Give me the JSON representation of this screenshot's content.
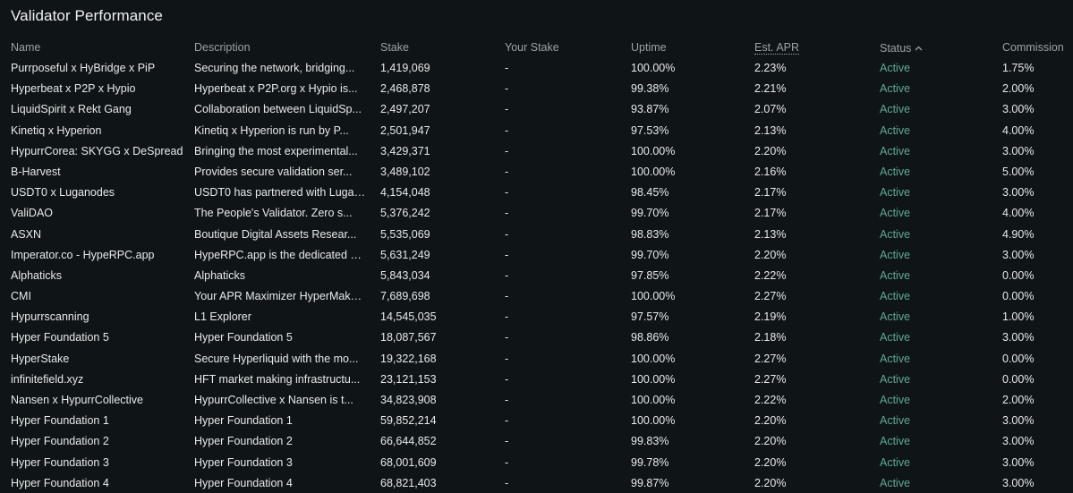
{
  "title": "Validator Performance",
  "headers": {
    "name": "Name",
    "description": "Description",
    "stake": "Stake",
    "your_stake": "Your Stake",
    "uptime": "Uptime",
    "apr": "Est. APR",
    "status": "Status",
    "commission": "Commission"
  },
  "icons": {
    "status_sort": "chevron-up-icon"
  },
  "colors": {
    "active": "#5fa893"
  },
  "rows": [
    {
      "name": "Purrposeful x HyBridge x PiP",
      "description": "Securing the network, bridging...",
      "stake": "1,419,069",
      "your_stake": "-",
      "uptime": "100.00%",
      "apr": "2.23%",
      "status": "Active",
      "commission": "1.75%"
    },
    {
      "name": "Hyperbeat x P2P x Hypio",
      "description": "Hyperbeat x P2P.org x Hypio is...",
      "stake": "2,468,878",
      "your_stake": "-",
      "uptime": "99.38%",
      "apr": "2.21%",
      "status": "Active",
      "commission": "2.00%"
    },
    {
      "name": "LiquidSpirit x Rekt Gang",
      "description": "Collaboration between LiquidSp...",
      "stake": "2,497,207",
      "your_stake": "-",
      "uptime": "93.87%",
      "apr": "2.07%",
      "status": "Active",
      "commission": "3.00%"
    },
    {
      "name": "Kinetiq x Hyperion",
      "description": "Kinetiq x Hyperion is run by P...",
      "stake": "2,501,947",
      "your_stake": "-",
      "uptime": "97.53%",
      "apr": "2.13%",
      "status": "Active",
      "commission": "4.00%"
    },
    {
      "name": "HypurrCorea: SKYGG x DeSpread",
      "description": "Bringing the most experimental...",
      "stake": "3,429,371",
      "your_stake": "-",
      "uptime": "100.00%",
      "apr": "2.20%",
      "status": "Active",
      "commission": "3.00%"
    },
    {
      "name": "B-Harvest",
      "description": "Provides secure validation ser...",
      "stake": "3,489,102",
      "your_stake": "-",
      "uptime": "100.00%",
      "apr": "2.16%",
      "status": "Active",
      "commission": "5.00%"
    },
    {
      "name": "USDT0 x Luganodes",
      "description": "USDT0 has partnered with Lugan...",
      "stake": "4,154,048",
      "your_stake": "-",
      "uptime": "98.45%",
      "apr": "2.17%",
      "status": "Active",
      "commission": "3.00%"
    },
    {
      "name": "ValiDAO",
      "description": "The People's Validator. Zero s...",
      "stake": "5,376,242",
      "your_stake": "-",
      "uptime": "99.70%",
      "apr": "2.17%",
      "status": "Active",
      "commission": "4.00%"
    },
    {
      "name": "ASXN",
      "description": "Boutique Digital Assets Resear...",
      "stake": "5,535,069",
      "your_stake": "-",
      "uptime": "98.83%",
      "apr": "2.13%",
      "status": "Active",
      "commission": "4.90%"
    },
    {
      "name": "Imperator.co - HypeRPC.app",
      "description": "HypeRPC.app is the dedicated R...",
      "stake": "5,631,249",
      "your_stake": "-",
      "uptime": "99.70%",
      "apr": "2.20%",
      "status": "Active",
      "commission": "3.00%"
    },
    {
      "name": "Alphaticks",
      "description": "Alphaticks",
      "stake": "5,843,034",
      "your_stake": "-",
      "uptime": "97.85%",
      "apr": "2.22%",
      "status": "Active",
      "commission": "0.00%"
    },
    {
      "name": "CMI",
      "description": "Your APR Maximizer HyperMaker....",
      "stake": "7,689,698",
      "your_stake": "-",
      "uptime": "100.00%",
      "apr": "2.27%",
      "status": "Active",
      "commission": "0.00%"
    },
    {
      "name": "Hypurrscanning",
      "description": "L1 Explorer",
      "stake": "14,545,035",
      "your_stake": "-",
      "uptime": "97.57%",
      "apr": "2.19%",
      "status": "Active",
      "commission": "1.00%"
    },
    {
      "name": "Hyper Foundation 5",
      "description": "Hyper Foundation 5",
      "stake": "18,087,567",
      "your_stake": "-",
      "uptime": "98.86%",
      "apr": "2.18%",
      "status": "Active",
      "commission": "3.00%"
    },
    {
      "name": "HyperStake",
      "description": "Secure Hyperliquid with the mo...",
      "stake": "19,322,168",
      "your_stake": "-",
      "uptime": "100.00%",
      "apr": "2.27%",
      "status": "Active",
      "commission": "0.00%"
    },
    {
      "name": "infinitefield.xyz",
      "description": "HFT market making infrastructu...",
      "stake": "23,121,153",
      "your_stake": "-",
      "uptime": "100.00%",
      "apr": "2.27%",
      "status": "Active",
      "commission": "0.00%"
    },
    {
      "name": "Nansen x HypurrCollective",
      "description": "HypurrCollective x Nansen is t...",
      "stake": "34,823,908",
      "your_stake": "-",
      "uptime": "100.00%",
      "apr": "2.22%",
      "status": "Active",
      "commission": "2.00%"
    },
    {
      "name": "Hyper Foundation 1",
      "description": "Hyper Foundation 1",
      "stake": "59,852,214",
      "your_stake": "-",
      "uptime": "100.00%",
      "apr": "2.20%",
      "status": "Active",
      "commission": "3.00%"
    },
    {
      "name": "Hyper Foundation 2",
      "description": "Hyper Foundation 2",
      "stake": "66,644,852",
      "your_stake": "-",
      "uptime": "99.83%",
      "apr": "2.20%",
      "status": "Active",
      "commission": "3.00%"
    },
    {
      "name": "Hyper Foundation 3",
      "description": "Hyper Foundation 3",
      "stake": "68,001,609",
      "your_stake": "-",
      "uptime": "99.78%",
      "apr": "2.20%",
      "status": "Active",
      "commission": "3.00%"
    },
    {
      "name": "Hyper Foundation 4",
      "description": "Hyper Foundation 4",
      "stake": "68,821,403",
      "your_stake": "-",
      "uptime": "99.87%",
      "apr": "2.20%",
      "status": "Active",
      "commission": "3.00%"
    }
  ]
}
